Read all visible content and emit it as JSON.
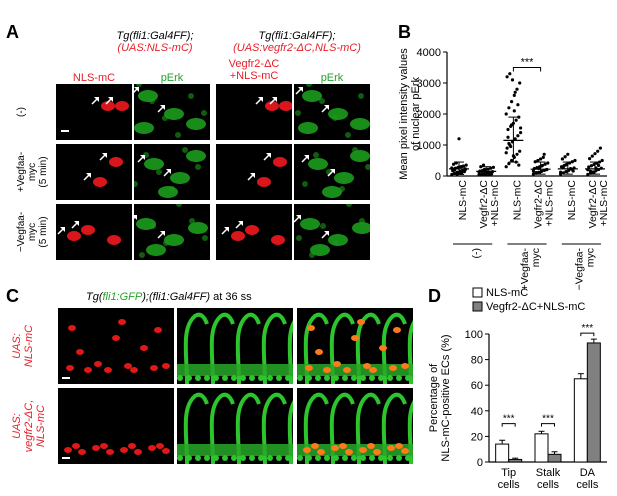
{
  "panelA": {
    "letter": "A",
    "header_left": [
      "Tg(fli1:Gal4FF);",
      "(UAS:NLS-mC)"
    ],
    "header_right": [
      "Tg(fli1:Gal4FF);",
      "(UAS:vegfr2-ΔC,NLS-mC)"
    ],
    "col_labels": [
      "NLS-mC",
      "pErk",
      "Vegfr2-ΔC\n+NLS-mC",
      "pErk"
    ],
    "col_label_colors": [
      "#e8202a",
      "#22a32a",
      "#e8202a",
      "#22a32a"
    ],
    "row_labels": [
      "(-)",
      "+Vegfaa-\nmyc\n(5 min)",
      "−Vegfaa-\nmyc\n(5 min)"
    ]
  },
  "panelB": {
    "letter": "B",
    "chart_data": {
      "type": "scatter",
      "ylabel": "Mean pixel intensity values\nof nuclear pErk",
      "ylim": [
        0,
        4000
      ],
      "yticks": [
        0,
        1000,
        2000,
        3000,
        4000
      ],
      "categories": [
        "NLS-mC",
        "Vegfr2-ΔC\n+NLS-mC",
        "NLS-mC",
        "Vegfr2-ΔC\n+NLS-mC",
        "NLS-mC",
        "Vegfr2-ΔC\n+NLS-mC"
      ],
      "groups": [
        "(-)",
        "+Vegfaa-\nmyc",
        "−Vegfaa-\nmyc"
      ],
      "means": [
        230,
        150,
        1150,
        220,
        230,
        230
      ],
      "sd_upper": [
        450,
        300,
        1900,
        450,
        450,
        450
      ],
      "sd_lower": [
        50,
        30,
        450,
        60,
        60,
        60
      ],
      "points": [
        [
          50,
          80,
          120,
          150,
          180,
          200,
          220,
          250,
          280,
          300,
          320,
          350,
          380,
          420,
          1200,
          100,
          140,
          260,
          190,
          60,
          90,
          310,
          230,
          170
        ],
        [
          40,
          60,
          80,
          100,
          120,
          140,
          160,
          180,
          200,
          220,
          250,
          280,
          300,
          350,
          110,
          90,
          70,
          130,
          150,
          210
        ],
        [
          300,
          400,
          500,
          600,
          700,
          800,
          900,
          1000,
          1100,
          1200,
          1300,
          1400,
          1500,
          1600,
          1700,
          1800,
          1900,
          2000,
          2200,
          2400,
          2600,
          2800,
          3000,
          3200,
          3300,
          3100,
          2700,
          2300,
          1550,
          1250,
          950,
          650,
          450,
          350,
          750,
          1050,
          1650,
          2100
        ],
        [
          60,
          90,
          120,
          150,
          180,
          210,
          240,
          270,
          300,
          340,
          380,
          420,
          460,
          500,
          550,
          600,
          200,
          160,
          110,
          250,
          320,
          700
        ],
        [
          60,
          100,
          140,
          180,
          220,
          260,
          300,
          340,
          380,
          420,
          460,
          500,
          550,
          620,
          700,
          240,
          160,
          120,
          280,
          360
        ],
        [
          50,
          90,
          130,
          170,
          210,
          250,
          290,
          330,
          370,
          410,
          450,
          500,
          560,
          640,
          720,
          800,
          900,
          200,
          150,
          110,
          260,
          340
        ]
      ],
      "significance": [
        {
          "between": [
            2,
            3
          ],
          "label": "***"
        }
      ]
    }
  },
  "panelC": {
    "letter": "C",
    "title_parts": [
      {
        "text": "Tg(",
        "color": "#000",
        "italic": true
      },
      {
        "text": "fli1:GFP",
        "color": "#22a32a",
        "italic": true
      },
      {
        "text": ");(fli1:Gal4FF)",
        "color": "#000",
        "italic": true
      },
      {
        "text": " at 36 ss",
        "color": "#000",
        "italic": false
      }
    ],
    "row_labels": [
      "UAS:\nNLS-mC",
      "UAS:\nvegfr2-ΔC,\nNLS-mC"
    ]
  },
  "panelD": {
    "letter": "D",
    "chart_data": {
      "type": "bar",
      "ylabel": "Percentage of\nNLS-mC-positive ECs (%)",
      "ylim": [
        0,
        100
      ],
      "yticks": [
        0,
        20,
        40,
        60,
        80,
        100
      ],
      "categories": [
        "Tip\ncells",
        "Stalk\ncells",
        "DA\ncells"
      ],
      "series": [
        {
          "name": "NLS-mC",
          "values": [
            14,
            22,
            65
          ],
          "errors": [
            3,
            2,
            4
          ],
          "color": "#ffffff"
        },
        {
          "name": "Vegfr2-ΔC+NLS-mC",
          "values": [
            2,
            6,
            93
          ],
          "errors": [
            1,
            2,
            3
          ],
          "color": "#808080"
        }
      ],
      "significance": [
        "***",
        "***",
        "***"
      ]
    }
  }
}
